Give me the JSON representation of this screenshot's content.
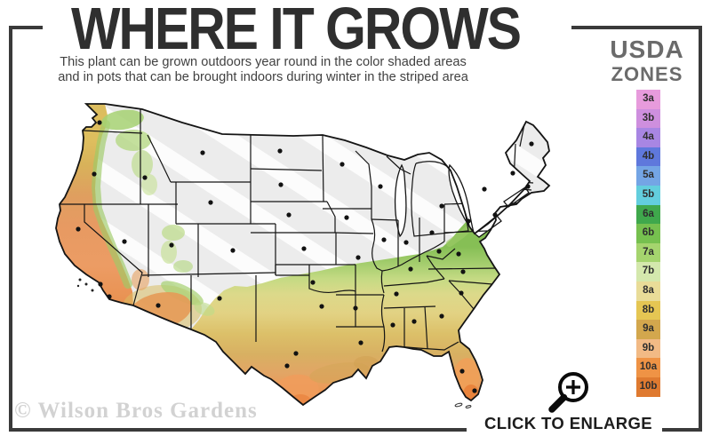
{
  "header": {
    "title": "WHERE IT GROWS",
    "subtitle_line1": "This plant can be grown outdoors year round in the color shaded areas",
    "subtitle_line2": "and in pots that can be brought indoors during winter in the striped area"
  },
  "legend": {
    "title_line1": "USDA",
    "title_line2": "ZONES",
    "zones": [
      {
        "label": "3a",
        "color": "#E79BDC"
      },
      {
        "label": "3b",
        "color": "#CE8FDE"
      },
      {
        "label": "4a",
        "color": "#A886E3"
      },
      {
        "label": "4b",
        "color": "#5F78DC"
      },
      {
        "label": "5a",
        "color": "#74A5E5"
      },
      {
        "label": "5b",
        "color": "#63CEDD"
      },
      {
        "label": "6a",
        "color": "#3FA84C"
      },
      {
        "label": "6b",
        "color": "#76C04F"
      },
      {
        "label": "7a",
        "color": "#A5D46E"
      },
      {
        "label": "7b",
        "color": "#D4E8AD"
      },
      {
        "label": "8a",
        "color": "#E9DC98"
      },
      {
        "label": "8b",
        "color": "#E5C653"
      },
      {
        "label": "9a",
        "color": "#D3A74D"
      },
      {
        "label": "9b",
        "color": "#F2BA85"
      },
      {
        "label": "10a",
        "color": "#EF9345"
      },
      {
        "label": "10b",
        "color": "#DF7A30"
      }
    ]
  },
  "footer": {
    "watermark": "© Wilson Bros Gardens",
    "enlarge_label": "CLICK TO ENLARGE"
  },
  "map": {
    "land_color": "#ececec",
    "stripe_color": "#ffffff",
    "border_color": "#141414",
    "frame_color": "#3a3a3a",
    "city_dots": [
      [
        112,
        138
      ],
      [
        106,
        196
      ],
      [
        88,
        258
      ],
      [
        113,
        320
      ],
      [
        123,
        334
      ],
      [
        140,
        272
      ],
      [
        163,
        200
      ],
      [
        193,
        276
      ],
      [
        178,
        344
      ],
      [
        228,
        172
      ],
      [
        237,
        228
      ],
      [
        262,
        282
      ],
      [
        247,
        336
      ],
      [
        315,
        170
      ],
      [
        316,
        208
      ],
      [
        325,
        242
      ],
      [
        342,
        280
      ],
      [
        352,
        318
      ],
      [
        362,
        345
      ],
      [
        333,
        398
      ],
      [
        323,
        412
      ],
      [
        385,
        185
      ],
      [
        428,
        210
      ],
      [
        497,
        232
      ],
      [
        390,
        245
      ],
      [
        403,
        290
      ],
      [
        432,
        270
      ],
      [
        457,
        273
      ],
      [
        486,
        262
      ],
      [
        462,
        303
      ],
      [
        446,
        331
      ],
      [
        400,
        347
      ],
      [
        406,
        386
      ],
      [
        442,
        366
      ],
      [
        466,
        362
      ],
      [
        497,
        356
      ],
      [
        519,
        330
      ],
      [
        521,
        306
      ],
      [
        516,
        286
      ],
      [
        494,
        283
      ],
      [
        527,
        249
      ],
      [
        545,
        213
      ],
      [
        557,
        242
      ],
      [
        598,
        162
      ],
      [
        577,
        195
      ],
      [
        594,
        210
      ],
      [
        520,
        418
      ],
      [
        534,
        440
      ]
    ]
  }
}
